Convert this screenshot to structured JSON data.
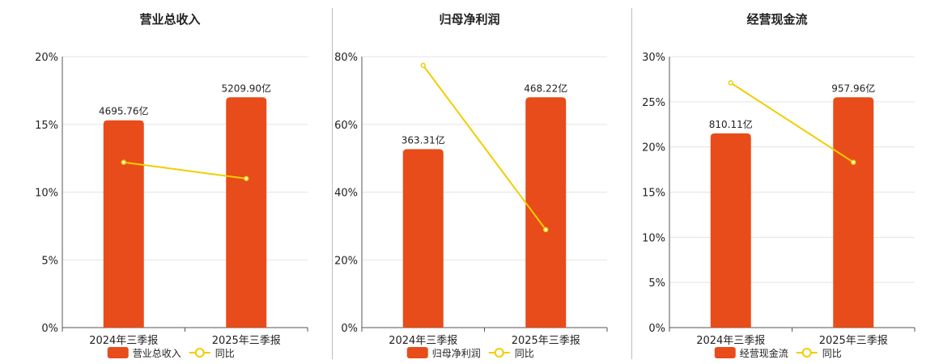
{
  "legend_line_label": "同比",
  "chart_data": [
    {
      "type": "bar",
      "title": "营业总收入",
      "categories": [
        "2024年三季报",
        "2025年三季报"
      ],
      "series": [
        {
          "name": "营业总收入",
          "kind": "bar",
          "axis_values": [
            15.3,
            17.0
          ],
          "labels": [
            "4695.76亿",
            "5209.90亿"
          ]
        },
        {
          "name": "同比",
          "kind": "line",
          "values": [
            12.2,
            11.0
          ]
        }
      ],
      "ylim": [
        0,
        20
      ],
      "yticks": [
        0,
        5,
        10,
        15,
        20
      ],
      "yticks_label": [
        "0%",
        "5%",
        "10%",
        "15%",
        "20%"
      ],
      "grid": true,
      "legend": "bottom"
    },
    {
      "type": "bar",
      "title": "归母净利润",
      "categories": [
        "2024年三季报",
        "2025年三季报"
      ],
      "series": [
        {
          "name": "归母净利润",
          "kind": "bar",
          "axis_values": [
            52.7,
            68.0
          ],
          "labels": [
            "363.31亿",
            "468.22亿"
          ]
        },
        {
          "name": "同比",
          "kind": "line",
          "values": [
            77.4,
            28.9
          ]
        }
      ],
      "ylim": [
        0,
        80
      ],
      "yticks": [
        0,
        20,
        40,
        60,
        80
      ],
      "yticks_label": [
        "0%",
        "20%",
        "40%",
        "60%",
        "80%"
      ],
      "grid": true,
      "legend": "bottom"
    },
    {
      "type": "bar",
      "title": "经营现金流",
      "categories": [
        "2024年三季报",
        "2025年三季报"
      ],
      "series": [
        {
          "name": "经营现金流",
          "kind": "bar",
          "axis_values": [
            21.5,
            25.5
          ],
          "labels": [
            "810.11亿",
            "957.96亿"
          ]
        },
        {
          "name": "同比",
          "kind": "line",
          "values": [
            27.1,
            18.3
          ]
        }
      ],
      "ylim": [
        0,
        30
      ],
      "yticks": [
        0,
        5,
        10,
        15,
        20,
        25,
        30
      ],
      "yticks_label": [
        "0%",
        "5%",
        "10%",
        "15%",
        "20%",
        "25%",
        "30%"
      ],
      "grid": true,
      "legend": "bottom"
    }
  ],
  "colors": {
    "bar": "#e84c1a",
    "line": "#f2cd00",
    "grid": "#e3e3e3",
    "axis": "#555555",
    "text": "#222222"
  }
}
